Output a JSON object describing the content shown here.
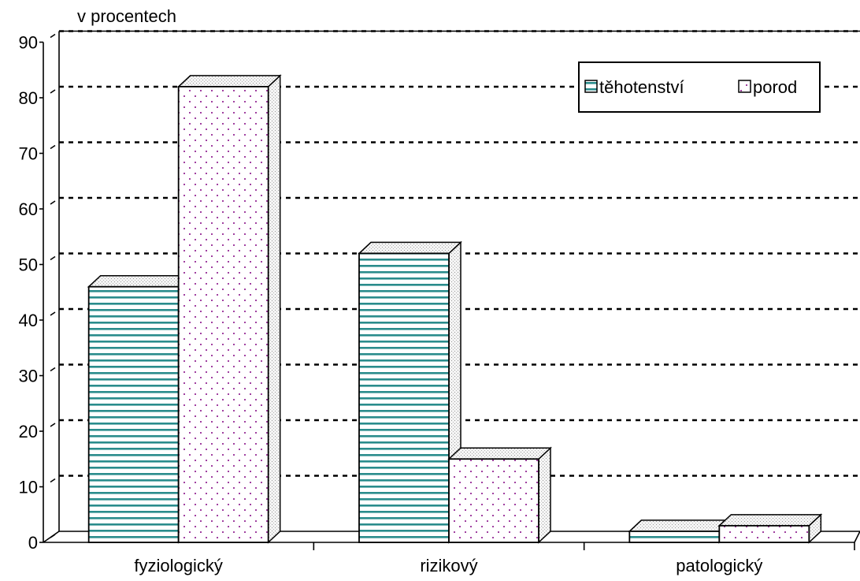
{
  "chart_data": {
    "type": "bar",
    "ylabel": "v procentech",
    "categories": [
      "fyziologický",
      "rizikový",
      "patologický"
    ],
    "ylim": [
      0,
      90
    ],
    "yticks": [
      0,
      10,
      20,
      30,
      40,
      50,
      60,
      70,
      80,
      90
    ],
    "series": [
      {
        "name": "těhotenství",
        "values": [
          46,
          52,
          2
        ],
        "color": "#2a8c8c",
        "pattern": "horizontal-stripes"
      },
      {
        "name": "porod",
        "values": [
          82,
          15,
          3
        ],
        "color": "#a040a0",
        "pattern": "dots"
      }
    ],
    "grid": true,
    "legend": "top-right"
  }
}
